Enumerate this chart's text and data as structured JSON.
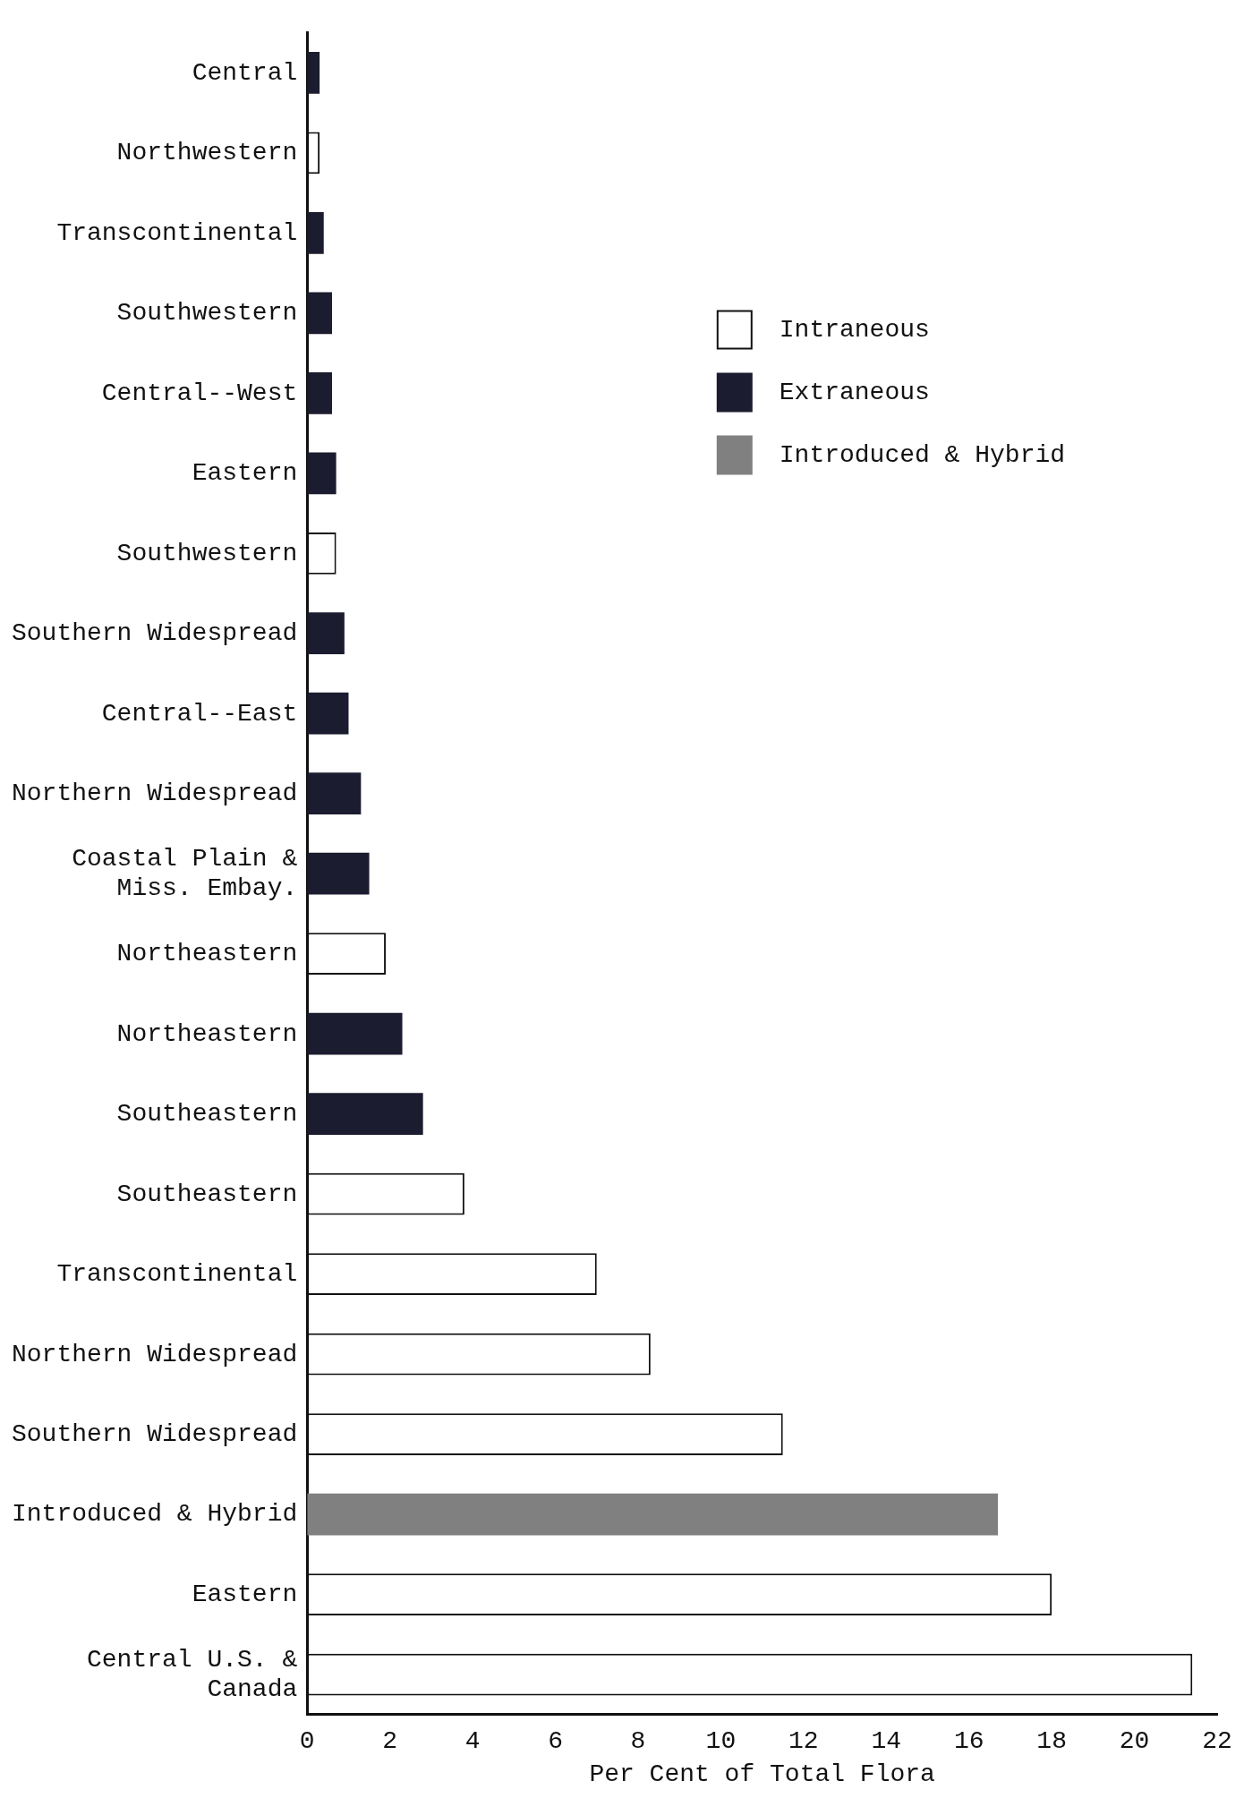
{
  "chart_data": {
    "type": "bar",
    "orientation": "horizontal",
    "stacked": true,
    "xlabel": "Per Cent of Total Flora",
    "categories": [
      "Central",
      "Northwestern",
      "Transcontinental",
      "Southwestern",
      "Central--West",
      "Eastern",
      "Southwestern",
      "Southern Widespread",
      "Central--East",
      "Northern Widespread",
      "Coastal Plain &\nMiss. Embay.",
      "Northeastern",
      "Northeastern",
      "Southeastern",
      "Southeastern",
      "Transcontinental",
      "Northern Widespread",
      "Southern Widespread",
      "Introduced & Hybrid",
      "Eastern",
      "Central U.S. &\nCanada"
    ],
    "series": [
      {
        "name": "Intraneous",
        "color": "#ffffff",
        "values": [
          null,
          0.3,
          null,
          null,
          null,
          null,
          0.7,
          null,
          null,
          null,
          null,
          1.9,
          null,
          null,
          3.8,
          7.0,
          8.3,
          11.5,
          null,
          18.0,
          21.4
        ]
      },
      {
        "name": "Extraneous",
        "color": "#1c1c30",
        "values": [
          0.3,
          null,
          0.4,
          0.6,
          0.6,
          0.7,
          null,
          0.9,
          1.0,
          1.3,
          1.5,
          null,
          2.3,
          2.8,
          null,
          null,
          null,
          null,
          null,
          null,
          null
        ]
      },
      {
        "name": "Introduced & Hybrid",
        "color": "#808080",
        "values": [
          null,
          null,
          null,
          null,
          null,
          null,
          null,
          null,
          null,
          null,
          null,
          null,
          null,
          null,
          null,
          null,
          null,
          null,
          16.7,
          null,
          null
        ]
      }
    ],
    "xlim": [
      0,
      22
    ],
    "xticks": [
      0,
      2,
      4,
      6,
      8,
      10,
      12,
      14,
      16,
      18,
      20,
      22
    ],
    "grid": false,
    "legend": "top right"
  }
}
